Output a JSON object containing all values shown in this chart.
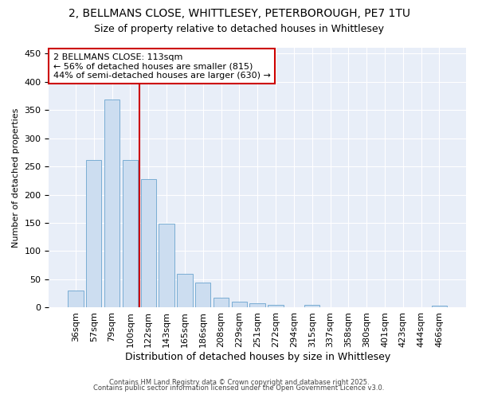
{
  "title1": "2, BELLMANS CLOSE, WHITTLESEY, PETERBOROUGH, PE7 1TU",
  "title2": "Size of property relative to detached houses in Whittlesey",
  "xlabel": "Distribution of detached houses by size in Whittlesey",
  "ylabel": "Number of detached properties",
  "categories": [
    "36sqm",
    "57sqm",
    "79sqm",
    "100sqm",
    "122sqm",
    "143sqm",
    "165sqm",
    "186sqm",
    "208sqm",
    "229sqm",
    "251sqm",
    "272sqm",
    "294sqm",
    "315sqm",
    "337sqm",
    "358sqm",
    "380sqm",
    "401sqm",
    "423sqm",
    "444sqm",
    "466sqm"
  ],
  "values": [
    30,
    262,
    368,
    262,
    228,
    148,
    60,
    45,
    18,
    10,
    7,
    5,
    0,
    5,
    0,
    0,
    0,
    0,
    0,
    0,
    3
  ],
  "bar_color": "#ccddf0",
  "bar_edge_color": "#7aadd4",
  "bar_edge_width": 0.7,
  "vline_color": "#cc0000",
  "vline_pos": 3.5,
  "annotation_text": "2 BELLMANS CLOSE: 113sqm\n← 56% of detached houses are smaller (815)\n44% of semi-detached houses are larger (630) →",
  "annotation_box_facecolor": "#ffffff",
  "annotation_box_edgecolor": "#cc0000",
  "ylim": [
    0,
    460
  ],
  "yticks": [
    0,
    50,
    100,
    150,
    200,
    250,
    300,
    350,
    400,
    450
  ],
  "plot_bg_color": "#e8eef8",
  "fig_bg_color": "#ffffff",
  "grid_color": "#ffffff",
  "footer1": "Contains HM Land Registry data © Crown copyright and database right 2025.",
  "footer2": "Contains public sector information licensed under the Open Government Licence v3.0.",
  "title_fontsize": 10,
  "subtitle_fontsize": 9,
  "annotation_fontsize": 8,
  "ylabel_fontsize": 8,
  "xlabel_fontsize": 9,
  "tick_fontsize": 8,
  "footer_fontsize": 6,
  "bar_width": 0.85
}
